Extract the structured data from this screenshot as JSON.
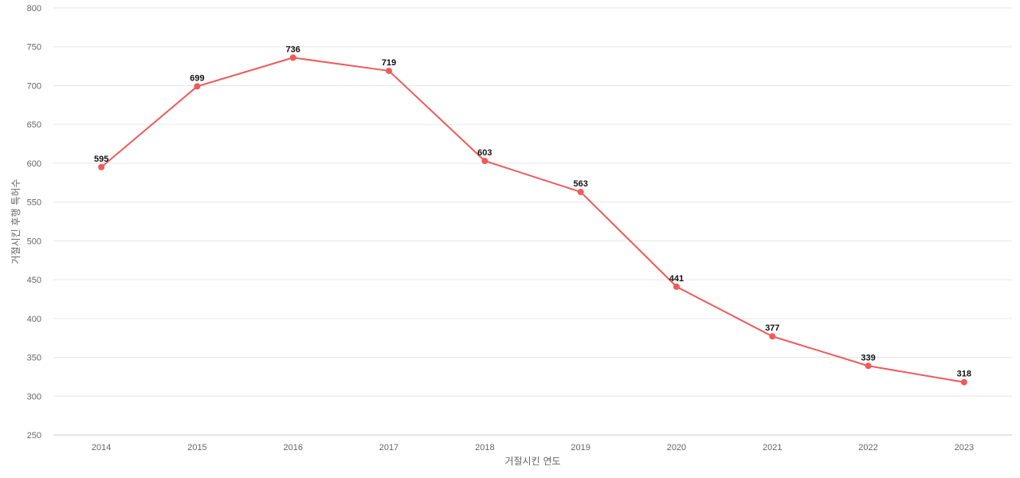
{
  "chart_data": {
    "type": "line",
    "title": "",
    "xlabel": "거절시킨 연도",
    "ylabel": "거절시킨 후행 특허수",
    "x": [
      "2014",
      "2015",
      "2016",
      "2017",
      "2018",
      "2019",
      "2020",
      "2021",
      "2022",
      "2023"
    ],
    "series": [
      {
        "values": [
          595,
          699,
          736,
          719,
          603,
          563,
          441,
          377,
          339,
          318
        ]
      }
    ],
    "ylim": [
      250,
      800
    ],
    "yticks": [
      250,
      300,
      350,
      400,
      450,
      500,
      550,
      600,
      650,
      700,
      750,
      800
    ],
    "grid": true,
    "legend": "none",
    "colors": {
      "line": "#ef5a5a",
      "grid": "#e6e6e6",
      "axis_text": "#666666",
      "label_text": "#111111"
    }
  }
}
